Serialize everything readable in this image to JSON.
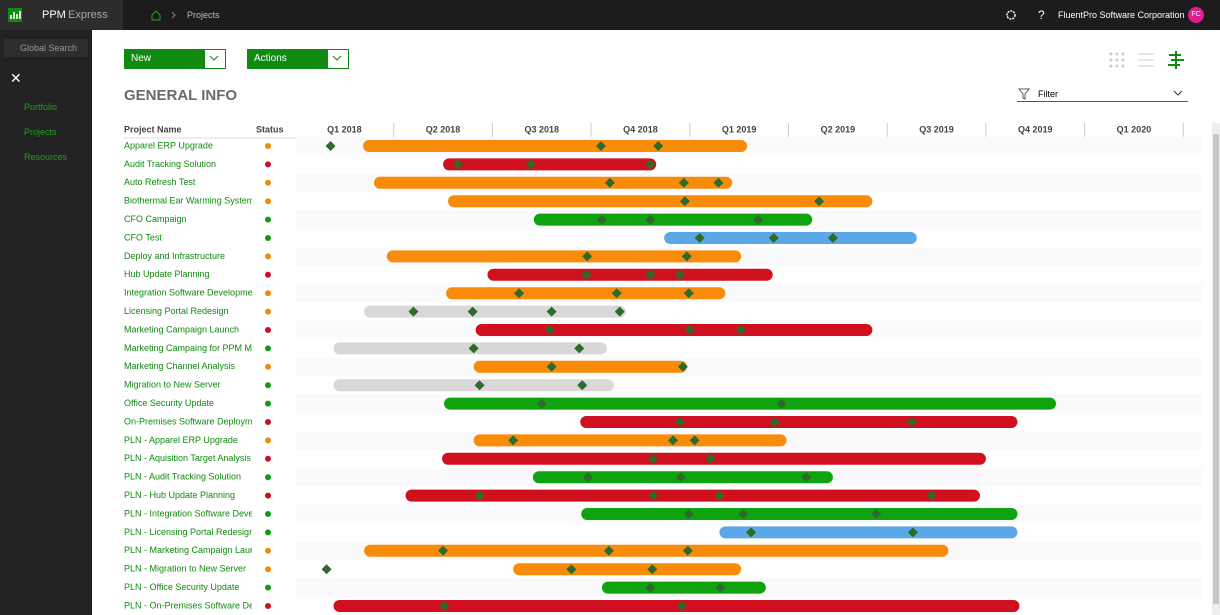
{
  "app": {
    "name": "PPM",
    "name_suffix": "Express",
    "breadcrumb": "Projects",
    "org": "FluentPro Software Corporation",
    "avatar": "FC"
  },
  "sidebar": {
    "search": "Global Search",
    "items": [
      "Portfolio",
      "Projects",
      "Resources"
    ],
    "active": 1
  },
  "toolbar": {
    "new": "New",
    "actions": "Actions",
    "section": "GENERAL INFO",
    "filter": "Filter"
  },
  "columns": {
    "name": "Project Name",
    "status": "Status"
  },
  "quarters": [
    "Q1 2018",
    "Q2 2018",
    "Q3 2018",
    "Q4 2018",
    "Q1 2019",
    "Q2 2019",
    "Q3 2019",
    "Q4 2019",
    "Q1 2020"
  ],
  "rows": [
    {
      "name": "Apparel ERP Upgrade",
      "status_color": "#f08a0c",
      "bar_color": "#f88c0a",
      "start": 0.69,
      "end": 4.58,
      "milestones": [
        0.36,
        3.1,
        3.68
      ]
    },
    {
      "name": "Audit Tracking Solution",
      "status_color": "#cc1020",
      "bar_color": "#d0101e",
      "start": 1.5,
      "end": 3.66,
      "milestones": [
        1.65,
        2.39,
        3.6
      ]
    },
    {
      "name": "Auto Refresh Test",
      "status_color": "#f08a0c",
      "bar_color": "#f88c0a",
      "start": 0.8,
      "end": 4.43,
      "milestones": [
        3.19,
        3.94,
        4.29
      ]
    },
    {
      "name": "Biothermal Ear Warming System:",
      "status_color": "#f08a0c",
      "bar_color": "#f88c0a",
      "start": 1.55,
      "end": 5.85,
      "milestones": [
        3.95,
        5.31
      ]
    },
    {
      "name": "CFO Campaign",
      "status_color": "#139a13",
      "bar_color": "#0fa30f",
      "start": 2.42,
      "end": 5.24,
      "milestones": [
        3.11,
        3.6,
        4.69
      ]
    },
    {
      "name": "CFO Test",
      "status_color": "#139a13",
      "bar_color": "#5aa8e8",
      "start": 3.74,
      "end": 6.3,
      "milestones": [
        4.1,
        4.85,
        5.45
      ]
    },
    {
      "name": "Deploy and Infrastructure",
      "status_color": "#f08a0c",
      "bar_color": "#f88c0a",
      "start": 0.93,
      "end": 4.52,
      "milestones": [
        2.96,
        3.97
      ]
    },
    {
      "name": "Hub Update Planning",
      "status_color": "#cc1020",
      "bar_color": "#d0101e",
      "start": 1.95,
      "end": 4.84,
      "milestones": [
        2.95,
        3.6,
        3.9
      ]
    },
    {
      "name": "Integration Software Developme",
      "status_color": "#f08a0c",
      "bar_color": "#f88c0a",
      "start": 1.53,
      "end": 4.36,
      "milestones": [
        2.27,
        3.26,
        3.99
      ]
    },
    {
      "name": "Licensing Portal Redesign",
      "status_color": "#f08a0c",
      "bar_color": "#d8d8d8",
      "start": 0.7,
      "end": 3.35,
      "milestones": [
        1.2,
        1.8,
        2.6,
        3.29
      ]
    },
    {
      "name": "Marketing Campaign Launch",
      "status_color": "#cc1020",
      "bar_color": "#d0101e",
      "start": 1.83,
      "end": 5.85,
      "milestones": [
        2.58,
        4.0,
        4.52
      ]
    },
    {
      "name": "Marketing Campaing for PPM M",
      "status_color": "#139a13",
      "bar_color": "#d8d8d8",
      "start": 0.39,
      "end": 3.16,
      "milestones": [
        1.81,
        2.88
      ]
    },
    {
      "name": "Marketing Channel Analysis",
      "status_color": "#f08a0c",
      "bar_color": "#f88c0a",
      "start": 1.81,
      "end": 3.97,
      "milestones": [
        2.6,
        3.93
      ]
    },
    {
      "name": "Migration to New Server",
      "status_color": "#139a13",
      "bar_color": "#d8d8d8",
      "start": 0.39,
      "end": 3.23,
      "milestones": [
        1.87,
        2.91
      ]
    },
    {
      "name": "Office Security Update",
      "status_color": "#139a13",
      "bar_color": "#0fa30f",
      "start": 1.51,
      "end": 7.71,
      "milestones": [
        2.5,
        4.93
      ]
    },
    {
      "name": "On-Premises Software Deployme",
      "status_color": "#cc1020",
      "bar_color": "#d0101e",
      "start": 2.89,
      "end": 7.32,
      "milestones": [
        3.9,
        4.86,
        6.25
      ]
    },
    {
      "name": "PLN - Apparel ERP Upgrade",
      "status_color": "#f08a0c",
      "bar_color": "#f88c0a",
      "start": 1.81,
      "end": 4.98,
      "milestones": [
        2.21,
        3.83,
        4.05
      ]
    },
    {
      "name": "PLN - Aquisition Target Analysis",
      "status_color": "#cc1020",
      "bar_color": "#d0101e",
      "start": 1.49,
      "end": 7.0,
      "milestones": [
        3.63,
        4.21
      ]
    },
    {
      "name": "PLN - Audit Tracking Solution",
      "status_color": "#139a13",
      "bar_color": "#0fa30f",
      "start": 2.41,
      "end": 5.45,
      "milestones": [
        2.97,
        3.91,
        5.18
      ]
    },
    {
      "name": "PLN - Hub Update Planning",
      "status_color": "#cc1020",
      "bar_color": "#d0101e",
      "start": 1.12,
      "end": 6.94,
      "milestones": [
        1.87,
        3.63,
        4.3,
        6.45
      ]
    },
    {
      "name": "PLN - Integration Software Deve",
      "status_color": "#139a13",
      "bar_color": "#0fa30f",
      "start": 2.9,
      "end": 7.32,
      "milestones": [
        3.99,
        4.54,
        5.89
      ]
    },
    {
      "name": "PLN - Licensing Portal Redesign",
      "status_color": "#139a13",
      "bar_color": "#5aa8e8",
      "start": 4.3,
      "end": 7.32,
      "milestones": [
        4.62,
        6.26
      ]
    },
    {
      "name": "PLN - Marketing Campaign Laun",
      "status_color": "#f08a0c",
      "bar_color": "#f88c0a",
      "start": 0.7,
      "end": 6.62,
      "milestones": [
        1.5,
        3.18,
        3.98
      ]
    },
    {
      "name": "PLN - Migration to New Server",
      "status_color": "#f08a0c",
      "bar_color": "#f88c0a",
      "start": 2.21,
      "end": 4.52,
      "milestones": [
        0.32,
        2.8,
        3.62
      ]
    },
    {
      "name": "PLN - Office Security Update",
      "status_color": "#139a13",
      "bar_color": "#0fa30f",
      "start": 3.11,
      "end": 4.77,
      "milestones": [
        3.6,
        4.31
      ]
    },
    {
      "name": "PLN - On-Premises Software Dep",
      "status_color": "#cc1020",
      "bar_color": "#d0101e",
      "start": 0.39,
      "end": 7.34,
      "milestones": [
        1.51,
        3.92
      ]
    }
  ]
}
